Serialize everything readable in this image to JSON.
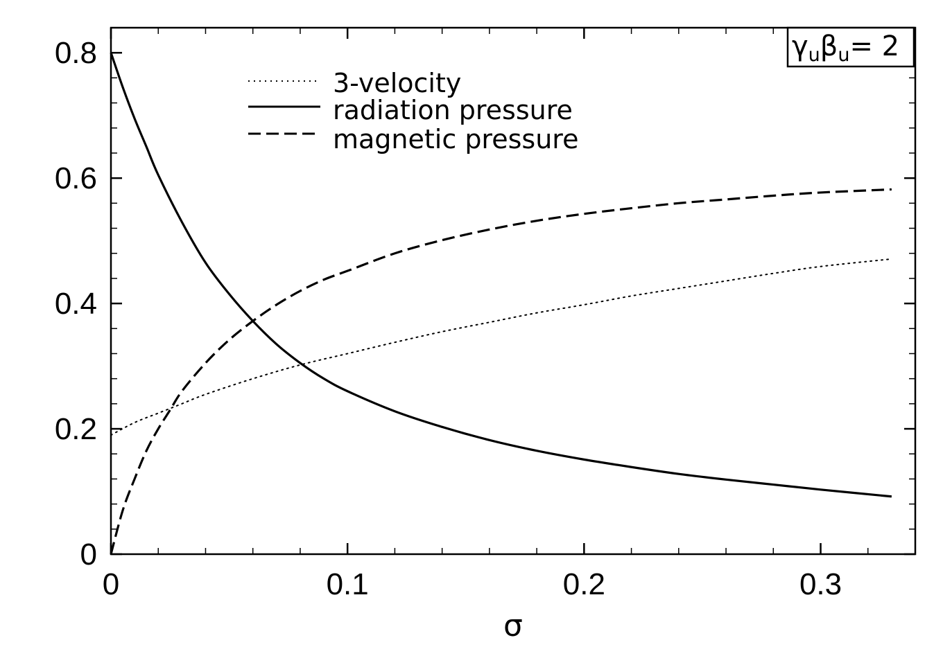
{
  "chart_data": {
    "type": "line",
    "title": "",
    "xlabel": "σ",
    "ylabel": "",
    "xlim": [
      0,
      0.34
    ],
    "ylim": [
      0,
      0.84
    ],
    "xticks": [
      0,
      0.1,
      0.2,
      0.3
    ],
    "xtick_labels": [
      "0",
      "0.1",
      "0.2",
      "0.3"
    ],
    "yticks": [
      0,
      0.2,
      0.4,
      0.6,
      0.8
    ],
    "ytick_labels": [
      "0",
      "0.2",
      "0.4",
      "0.6",
      "0.8"
    ],
    "x_minor_step": 0.02,
    "y_minor_step": 0.04,
    "grid": false,
    "legend_position": "top-left",
    "annotation": {
      "greek1": "γ",
      "sub1": "u",
      "greek2": "β",
      "sub2": "u",
      "rest": "= 2",
      "position": "top-right"
    },
    "series": [
      {
        "name": "3-velocity",
        "style": "dotted",
        "x": [
          0,
          0.01,
          0.02,
          0.03,
          0.04,
          0.06,
          0.08,
          0.1,
          0.12,
          0.14,
          0.16,
          0.18,
          0.2,
          0.22,
          0.24,
          0.26,
          0.28,
          0.3,
          0.33
        ],
        "y": [
          0.19,
          0.21,
          0.225,
          0.24,
          0.255,
          0.28,
          0.302,
          0.32,
          0.338,
          0.355,
          0.37,
          0.385,
          0.398,
          0.412,
          0.424,
          0.436,
          0.448,
          0.459,
          0.471
        ]
      },
      {
        "name": "radiation pressure",
        "style": "solid",
        "x": [
          0,
          0.005,
          0.01,
          0.015,
          0.02,
          0.03,
          0.04,
          0.05,
          0.06,
          0.07,
          0.08,
          0.09,
          0.1,
          0.12,
          0.14,
          0.16,
          0.18,
          0.2,
          0.22,
          0.24,
          0.26,
          0.28,
          0.3,
          0.33
        ],
        "y": [
          0.8,
          0.745,
          0.695,
          0.65,
          0.605,
          0.53,
          0.465,
          0.415,
          0.372,
          0.335,
          0.305,
          0.28,
          0.26,
          0.228,
          0.203,
          0.182,
          0.165,
          0.151,
          0.139,
          0.128,
          0.119,
          0.111,
          0.103,
          0.092
        ]
      },
      {
        "name": "magnetic pressure",
        "style": "dashed",
        "x": [
          0,
          0.005,
          0.01,
          0.015,
          0.02,
          0.025,
          0.03,
          0.04,
          0.05,
          0.06,
          0.07,
          0.08,
          0.09,
          0.1,
          0.12,
          0.14,
          0.16,
          0.18,
          0.2,
          0.22,
          0.24,
          0.26,
          0.28,
          0.3,
          0.33
        ],
        "y": [
          0,
          0.07,
          0.12,
          0.165,
          0.2,
          0.23,
          0.26,
          0.305,
          0.342,
          0.372,
          0.398,
          0.42,
          0.438,
          0.452,
          0.48,
          0.501,
          0.518,
          0.532,
          0.543,
          0.552,
          0.56,
          0.566,
          0.572,
          0.577,
          0.582
        ]
      }
    ]
  }
}
